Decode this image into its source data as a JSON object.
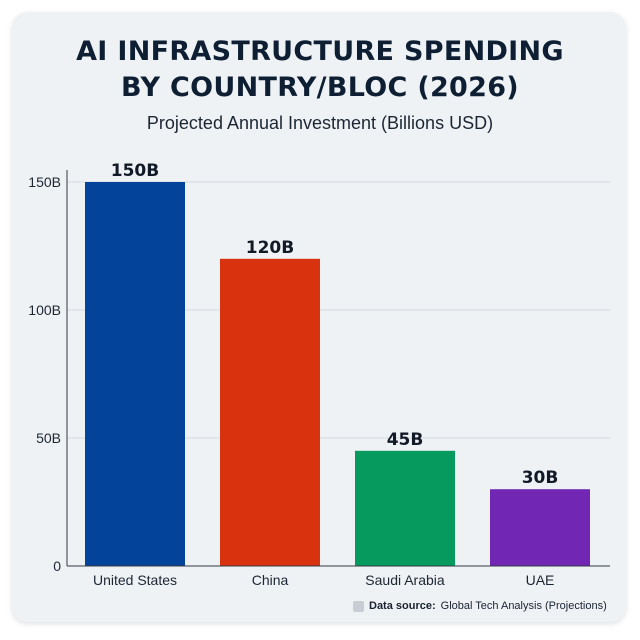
{
  "chart_data": {
    "type": "bar",
    "title": "AI INFRASTRUCTURE SPENDING BY COUNTRY/BLOC (2026)",
    "title_lines": [
      "AI INFRASTRUCTURE SPENDING",
      "BY COUNTRY/BLOC (2026)"
    ],
    "subtitle": "Projected Annual Investment (Billions USD)",
    "categories": [
      "United States",
      "China",
      "Saudi Arabia",
      "UAE"
    ],
    "values": [
      150,
      120,
      45,
      30
    ],
    "data_labels": [
      "150B",
      "120B",
      "45B",
      "30B"
    ],
    "colors": [
      "#03439a",
      "#d9320e",
      "#079a5f",
      "#7127b3"
    ],
    "yticks": [
      0,
      50,
      100,
      150
    ],
    "ytick_labels": [
      "0",
      "50B",
      "100B",
      "150B"
    ],
    "ylim": [
      0,
      150
    ],
    "grid": true,
    "xlabel": "",
    "ylabel": ""
  },
  "footer": {
    "source_label": "Data source:",
    "source_text": "Global Tech Analysis (Projections)"
  }
}
